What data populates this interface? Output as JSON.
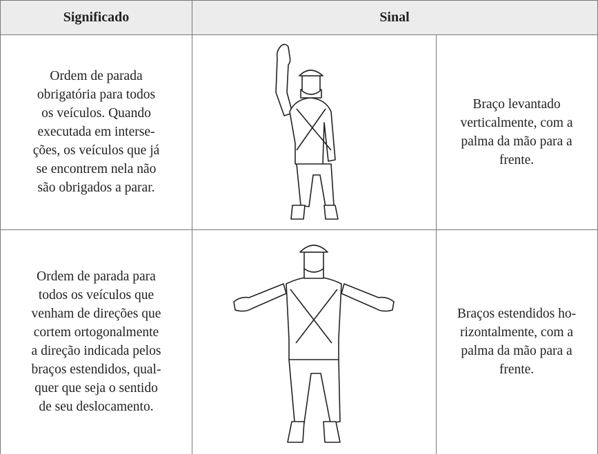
{
  "table": {
    "header": [
      "Significado",
      "Sinal"
    ],
    "rows": [
      {
        "meaning": [
          "Ordem de parada",
          "obrigatória para todos",
          "os veículos. Quando",
          "executada em interse-",
          "ções, os veículos que já",
          "se encontrem nela não",
          "são obrigados a parar."
        ],
        "description": [
          "Braço levantado",
          "verticalmente, com a",
          "palma da mão para a",
          "frente."
        ]
      },
      {
        "meaning": [
          "Ordem de parada para",
          "todos os veículos que",
          "venham de direções que",
          "cortem ortogonalmente",
          "a direção indicada pelos",
          "braços estendidos, qual-",
          "quer que seja o sentido",
          "de seu deslocamento."
        ],
        "description": [
          "Braços estendidos ho-",
          "rizontalmente, com a",
          "palma da mão para a",
          "frente."
        ]
      }
    ]
  }
}
